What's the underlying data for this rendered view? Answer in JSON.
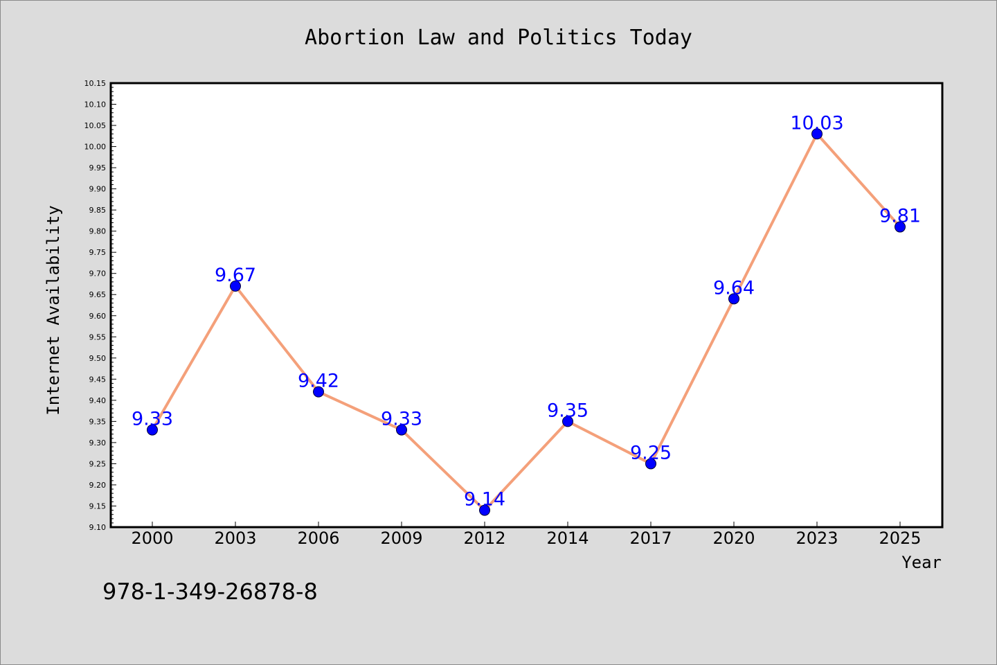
{
  "chart_data": {
    "type": "line",
    "title": "Abortion Law and Politics Today",
    "xlabel": "Year",
    "ylabel": "Internet Availability",
    "categories": [
      "2000",
      "2003",
      "2006",
      "2009",
      "2012",
      "2014",
      "2017",
      "2020",
      "2023",
      "2025"
    ],
    "series": [
      {
        "values": [
          9.33,
          9.67,
          9.42,
          9.33,
          9.14,
          9.35,
          9.25,
          9.64,
          10.03,
          9.81
        ],
        "labels": [
          "9.33",
          "9.67",
          "9.42",
          "9.33",
          "9.14",
          "9.35",
          "9.25",
          "9.64",
          "10.03",
          "9.81"
        ],
        "line_color": "#f4a07a",
        "marker_color": "#0000ff"
      }
    ],
    "ylim": [
      9.1,
      10.15
    ],
    "yticks": [
      "9.10",
      "9.15",
      "9.20",
      "9.25",
      "9.30",
      "9.35",
      "9.40",
      "9.45",
      "9.50",
      "9.55",
      "9.60",
      "9.65",
      "9.70",
      "9.75",
      "9.80",
      "9.85",
      "9.90",
      "9.95",
      "10.00",
      "10.05",
      "10.10",
      "10.15"
    ],
    "grid": false,
    "legend": "none"
  },
  "annotation": "978-1-349-26878-8"
}
